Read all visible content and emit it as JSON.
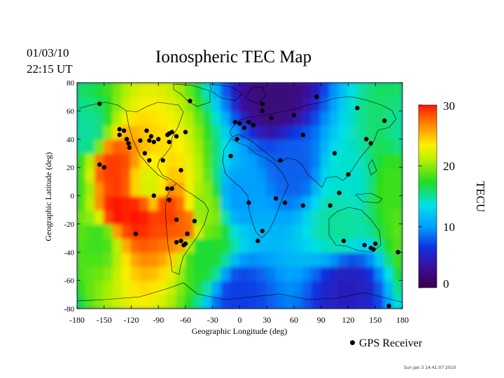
{
  "date_line": "01/03/10",
  "time_line": "22:15 UT",
  "footer_timestamp": "Sun Jan  3 14:41:07 2010",
  "chart_data": {
    "type": "heatmap",
    "title": "Ionospheric TEC Map",
    "xlabel": "Geographic Longitude (deg)",
    "ylabel": "Geographic Latitude (deg)",
    "xlim": [
      -180,
      180
    ],
    "ylim": [
      -80,
      80
    ],
    "xticks": [
      "-180",
      "-150",
      "-120",
      "-90",
      "-60",
      "-30",
      "0",
      "30",
      "60",
      "90",
      "120",
      "150",
      "180"
    ],
    "yticks": [
      "80",
      "60",
      "40",
      "20",
      "0",
      "-20",
      "-40",
      "-60",
      "-80"
    ],
    "colorbar": {
      "label": "TECU",
      "range": [
        0,
        30
      ],
      "ticks": [
        "30",
        "20",
        "10",
        "0"
      ]
    },
    "legend": {
      "label": "GPS Receiver",
      "placement": "bottom-right"
    },
    "tec_features": [
      {
        "lon": -140,
        "lat": 20,
        "tec": 29
      },
      {
        "lon": -135,
        "lat": -10,
        "tec": 30
      },
      {
        "lon": -110,
        "lat": -12,
        "tec": 30
      },
      {
        "lon": -80,
        "lat": -12,
        "tec": 29
      },
      {
        "lon": -62,
        "lat": -20,
        "tec": 28
      },
      {
        "lon": -100,
        "lat": 5,
        "tec": 22
      },
      {
        "lon": -155,
        "lat": -30,
        "tec": 18
      },
      {
        "lon": -40,
        "lat": -10,
        "tec": 20
      },
      {
        "lon": -40,
        "lat": -40,
        "tec": 17
      },
      {
        "lon": -170,
        "lat": 45,
        "tec": 15
      },
      {
        "lon": 175,
        "lat": 5,
        "tec": 18
      },
      {
        "lon": 110,
        "lat": -20,
        "tec": 15
      },
      {
        "lon": 120,
        "lat": 10,
        "tec": 14
      },
      {
        "lon": 0,
        "lat": 0,
        "tec": 10
      },
      {
        "lon": 60,
        "lat": 20,
        "tec": 8
      },
      {
        "lon": 40,
        "lat": 70,
        "tec": 2
      },
      {
        "lon": 0,
        "lat": -70,
        "tec": 7
      },
      {
        "lon": 120,
        "lat": -65,
        "tec": 5
      }
    ],
    "gps_receivers": [
      [
        -155,
        65
      ],
      [
        -133,
        47
      ],
      [
        -133,
        43
      ],
      [
        -128,
        46
      ],
      [
        -125,
        40
      ],
      [
        -123,
        37
      ],
      [
        -122,
        34
      ],
      [
        -110,
        39
      ],
      [
        -103,
        46
      ],
      [
        -100,
        39
      ],
      [
        -95,
        38
      ],
      [
        -98,
        42
      ],
      [
        -90,
        40
      ],
      [
        -80,
        43
      ],
      [
        -78,
        38
      ],
      [
        -75,
        45
      ],
      [
        -70,
        42
      ],
      [
        -78,
        44
      ],
      [
        -60,
        45
      ],
      [
        -55,
        67
      ],
      [
        -105,
        30
      ],
      [
        -100,
        25
      ],
      [
        -85,
        25
      ],
      [
        -65,
        18
      ],
      [
        -80,
        5
      ],
      [
        -78,
        -3
      ],
      [
        -75,
        5
      ],
      [
        -95,
        0
      ],
      [
        -115,
        -27
      ],
      [
        -70,
        -17
      ],
      [
        -70,
        -33
      ],
      [
        -65,
        -32
      ],
      [
        -62,
        -35
      ],
      [
        -58,
        -27
      ],
      [
        -50,
        -18
      ],
      [
        -60,
        -34
      ],
      [
        -155,
        22
      ],
      [
        -150,
        20
      ],
      [
        -10,
        28
      ],
      [
        -3,
        40
      ],
      [
        0,
        51
      ],
      [
        5,
        48
      ],
      [
        10,
        52
      ],
      [
        15,
        50
      ],
      [
        -5,
        52
      ],
      [
        25,
        65
      ],
      [
        25,
        60
      ],
      [
        35,
        55
      ],
      [
        60,
        57
      ],
      [
        85,
        70
      ],
      [
        130,
        62
      ],
      [
        160,
        53
      ],
      [
        70,
        43
      ],
      [
        105,
        30
      ],
      [
        145,
        37
      ],
      [
        120,
        15
      ],
      [
        140,
        40
      ],
      [
        45,
        25
      ],
      [
        110,
        2
      ],
      [
        100,
        -7
      ],
      [
        10,
        -5
      ],
      [
        40,
        -2
      ],
      [
        50,
        -5
      ],
      [
        25,
        -25
      ],
      [
        20,
        -32
      ],
      [
        70,
        -7
      ],
      [
        115,
        -32
      ],
      [
        138,
        -35
      ],
      [
        145,
        -37
      ],
      [
        150,
        -34
      ],
      [
        148,
        -38
      ],
      [
        175,
        -40
      ],
      [
        165,
        -78
      ]
    ]
  }
}
